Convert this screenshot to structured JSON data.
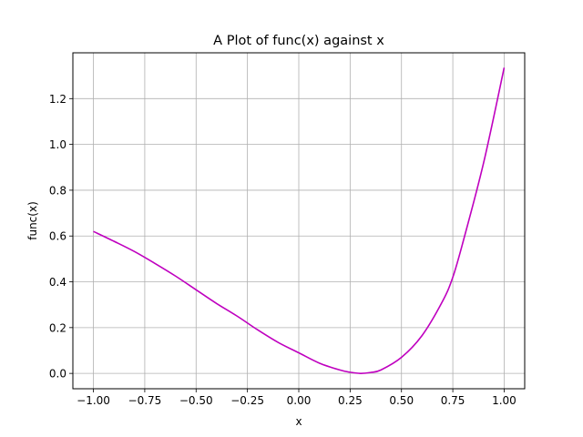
{
  "chart_data": {
    "type": "line",
    "title": "A Plot of func(x) against x",
    "xlabel": "x",
    "ylabel": "func(x)",
    "xlim": [
      -1.1,
      1.1
    ],
    "ylim": [
      -0.067,
      1.4
    ],
    "grid": true,
    "line_color": "#bf00bf",
    "xticks": [
      -1.0,
      -0.75,
      -0.5,
      -0.25,
      0.0,
      0.25,
      0.5,
      0.75,
      1.0
    ],
    "xtick_labels": [
      "−1.00",
      "−0.75",
      "−0.50",
      "−0.25",
      "0.00",
      "0.25",
      "0.50",
      "0.75",
      "1.00"
    ],
    "yticks": [
      0.0,
      0.2,
      0.4,
      0.6,
      0.8,
      1.0,
      1.2
    ],
    "ytick_labels": [
      "0.0",
      "0.2",
      "0.4",
      "0.6",
      "0.8",
      "1.0",
      "1.2"
    ],
    "series": [
      {
        "x": [
          -1.0,
          -0.9,
          -0.8,
          -0.7,
          -0.6,
          -0.5,
          -0.4,
          -0.3,
          -0.2,
          -0.1,
          0.0,
          0.1,
          0.2,
          0.25,
          0.3,
          0.35,
          0.4,
          0.5,
          0.6,
          0.7,
          0.75,
          0.8,
          0.9,
          1.0
        ],
        "y": [
          0.62,
          0.577,
          0.532,
          0.48,
          0.425,
          0.365,
          0.305,
          0.25,
          0.19,
          0.135,
          0.09,
          0.045,
          0.015,
          0.005,
          0.0,
          0.004,
          0.015,
          0.07,
          0.165,
          0.315,
          0.42,
          0.575,
          0.92,
          1.335
        ]
      }
    ]
  }
}
